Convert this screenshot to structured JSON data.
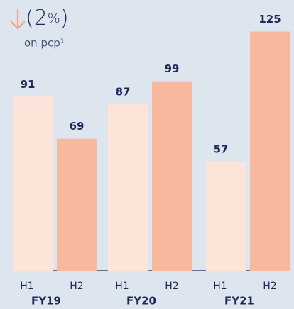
{
  "chart_data": {
    "type": "bar",
    "headline_parts": [
      "(2",
      "%",
      ")"
    ],
    "subtitle": "on pcp¹",
    "categories": [
      "FY19",
      "FY20",
      "FY21"
    ],
    "series": [
      {
        "name": "H1",
        "color": "#fde4d8",
        "values": [
          91,
          87,
          57
        ]
      },
      {
        "name": "H2",
        "color": "#f8b89d",
        "values": [
          69,
          99,
          125
        ]
      }
    ]
  }
}
